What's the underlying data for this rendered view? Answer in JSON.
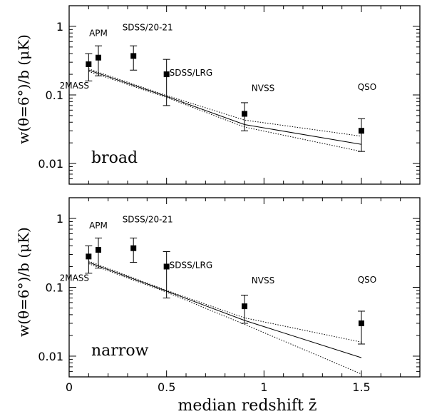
{
  "chart_data": {
    "type": "scatter",
    "xlabel": "median redshift z̄",
    "ylabel": "w(θ=6°)/b (μK)",
    "x_scale": "linear",
    "y_scale": "log",
    "xlim": [
      0,
      1.8
    ],
    "ylim": [
      0.005,
      2
    ],
    "x_ticks": [
      {
        "value": 0,
        "label": "0"
      },
      {
        "value": 0.5,
        "label": "0.5"
      },
      {
        "value": 1,
        "label": "1"
      },
      {
        "value": 1.5,
        "label": "1.5"
      }
    ],
    "y_ticks": [
      {
        "value": 0.01,
        "label": "0.01"
      },
      {
        "value": 0.1,
        "label": "0.1"
      },
      {
        "value": 1,
        "label": "1"
      }
    ],
    "panels": [
      {
        "panel_label": "broad",
        "points": [
          {
            "name": "2MASS",
            "x": 0.1,
            "y": 0.28,
            "lo": 0.16,
            "hi": 0.4
          },
          {
            "name": "APM",
            "x": 0.15,
            "y": 0.35,
            "lo": 0.19,
            "hi": 0.52
          },
          {
            "name": "SDSS/20-21",
            "x": 0.33,
            "y": 0.37,
            "lo": 0.23,
            "hi": 0.52
          },
          {
            "name": "SDSS/LRG",
            "x": 0.5,
            "y": 0.2,
            "lo": 0.07,
            "hi": 0.33
          },
          {
            "name": "NVSS",
            "x": 0.9,
            "y": 0.053,
            "lo": 0.03,
            "hi": 0.077
          },
          {
            "name": "QSO",
            "x": 1.5,
            "y": 0.03,
            "lo": 0.015,
            "hi": 0.045
          }
        ],
        "model": {
          "x": [
            0.1,
            0.5,
            0.9,
            1.5
          ],
          "y": [
            0.23,
            0.095,
            0.037,
            0.019
          ]
        },
        "model_upper": {
          "x": [
            0.1,
            0.5,
            0.9,
            1.5
          ],
          "y": [
            0.24,
            0.098,
            0.043,
            0.025
          ]
        },
        "model_lower": {
          "x": [
            0.1,
            0.5,
            0.9,
            1.5
          ],
          "y": [
            0.22,
            0.092,
            0.034,
            0.015
          ]
        }
      },
      {
        "panel_label": "narrow",
        "points": [
          {
            "name": "2MASS",
            "x": 0.1,
            "y": 0.28,
            "lo": 0.16,
            "hi": 0.4
          },
          {
            "name": "APM",
            "x": 0.15,
            "y": 0.35,
            "lo": 0.19,
            "hi": 0.52
          },
          {
            "name": "SDSS/20-21",
            "x": 0.33,
            "y": 0.37,
            "lo": 0.23,
            "hi": 0.52
          },
          {
            "name": "SDSS/LRG",
            "x": 0.5,
            "y": 0.2,
            "lo": 0.07,
            "hi": 0.33
          },
          {
            "name": "NVSS",
            "x": 0.9,
            "y": 0.053,
            "lo": 0.03,
            "hi": 0.077
          },
          {
            "name": "QSO",
            "x": 1.5,
            "y": 0.03,
            "lo": 0.015,
            "hi": 0.045
          }
        ],
        "model": {
          "x": [
            0.1,
            0.5,
            0.9,
            1.5
          ],
          "y": [
            0.23,
            0.088,
            0.033,
            0.0095
          ]
        },
        "model_upper": {
          "x": [
            0.1,
            0.5,
            0.9,
            1.5
          ],
          "y": [
            0.24,
            0.09,
            0.036,
            0.016
          ]
        },
        "model_lower": {
          "x": [
            0.1,
            0.5,
            0.9,
            1.5
          ],
          "y": [
            0.22,
            0.085,
            0.029,
            0.0055
          ]
        }
      }
    ]
  }
}
